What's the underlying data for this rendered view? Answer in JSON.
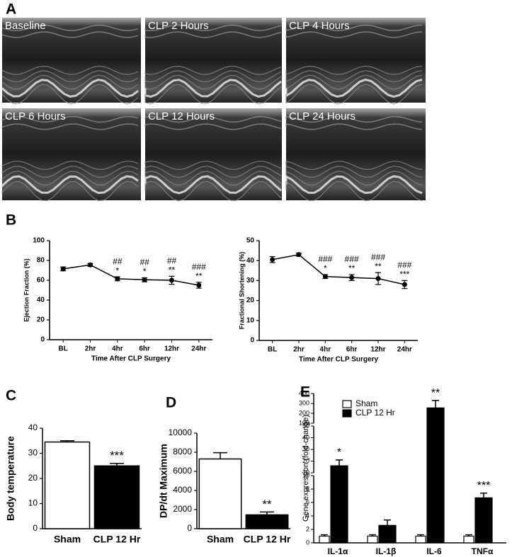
{
  "panel_a": {
    "label": "A",
    "images": [
      "Baseline",
      "CLP 2 Hours",
      "CLP 4 Hours",
      "CLP 6 Hours",
      "CLP 12 Hours",
      "CLP 24 Hours"
    ]
  },
  "chart_data": [
    {
      "type": "line",
      "panel": "B",
      "ylabel": "Ejection Fraction (%)",
      "xlabel": "Time After CLP Surgery",
      "categories": [
        "BL",
        "2hr",
        "4hr",
        "6hr",
        "12hr",
        "24hr"
      ],
      "values": [
        71.5,
        75.5,
        61.5,
        60.5,
        60,
        55
      ],
      "errors": [
        2,
        1.5,
        2,
        2,
        4,
        3
      ],
      "annotations_top": [
        null,
        null,
        "##",
        "##",
        "##",
        "###"
      ],
      "annotations_bottom": [
        null,
        null,
        "*",
        "*",
        "**",
        "**"
      ],
      "ylim": [
        0,
        100
      ],
      "yticks": [
        0,
        20,
        40,
        60,
        80,
        100
      ],
      "color": "#000000"
    },
    {
      "type": "line",
      "ylabel": "Fractional Shortening (%)",
      "xlabel": "Time After CLP Surgery",
      "categories": [
        "BL",
        "2hr",
        "4hr",
        "6hr",
        "12hr",
        "24hr"
      ],
      "values": [
        40.5,
        43,
        32,
        31.5,
        31,
        28
      ],
      "errors": [
        1.5,
        0.8,
        1,
        1.5,
        3,
        2
      ],
      "annotations_top": [
        null,
        null,
        "###",
        "###",
        "###",
        "###"
      ],
      "annotations_bottom": [
        null,
        null,
        "*",
        "**",
        "**",
        "***"
      ],
      "ylim": [
        0,
        50
      ],
      "yticks": [
        0,
        10,
        20,
        30,
        40,
        50
      ],
      "color": "#000000"
    },
    {
      "type": "bar",
      "panel": "C",
      "ylabel": "Body temperature",
      "categories": [
        "Sham",
        "CLP 12 Hr"
      ],
      "values": [
        34.5,
        25
      ],
      "errors": [
        0.5,
        1
      ],
      "colors": [
        "#ffffff",
        "#000000"
      ],
      "annotations": [
        null,
        "***"
      ],
      "ylim": [
        0,
        40
      ],
      "yticks": [
        0,
        10,
        20,
        30,
        40
      ]
    },
    {
      "type": "bar",
      "panel": "D",
      "ylabel": "DP/dt Maximum",
      "categories": [
        "Sham",
        "CLP 12 Hr"
      ],
      "values": [
        7300,
        1450
      ],
      "errors": [
        650,
        300
      ],
      "colors": [
        "#ffffff",
        "#000000"
      ],
      "annotations": [
        null,
        "**"
      ],
      "ylim": [
        0,
        10000
      ],
      "yticks": [
        0,
        2000,
        4000,
        6000,
        8000,
        10000
      ]
    },
    {
      "type": "grouped_bar",
      "panel": "E",
      "ylabel": "Gene expression (fold-change)",
      "categories": [
        "IL-1α",
        "IL-1β",
        "IL-6",
        "TNFα"
      ],
      "series": [
        {
          "name": "Sham",
          "color": "#ffffff",
          "values": [
            1,
            1,
            1,
            1
          ],
          "errors": [
            0.2,
            0.2,
            0.2,
            0.2
          ]
        },
        {
          "name": "CLP 12 Hr",
          "color": "#000000",
          "values": [
            16,
            2.6,
            255,
            6.7
          ],
          "errors": [
            5,
            0.8,
            75,
            0.7
          ]
        }
      ],
      "annotations": [
        "*",
        null,
        "**",
        "***"
      ],
      "y_segments": [
        {
          "ylim": [
            0,
            10
          ],
          "yticks": [
            0,
            2,
            4,
            6,
            8,
            10
          ]
        },
        {
          "ylim": [
            10,
            50
          ],
          "yticks": [
            10,
            20,
            30,
            40,
            50
          ]
        },
        {
          "ylim": [
            100,
            400
          ],
          "yticks": [
            100,
            200,
            300,
            400
          ]
        }
      ]
    }
  ]
}
